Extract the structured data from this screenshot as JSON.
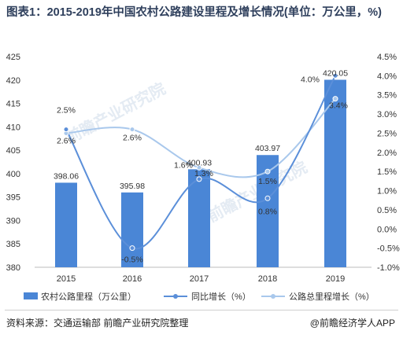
{
  "title": "图表1：2015-2019年中国农村公路建设里程及增长情况(单位：万公里，%)",
  "source": "资料来源：交通运输部 前瞻产业研究院整理",
  "credit": "@前瞻经济学人APP",
  "watermark": "前瞻产业研究院",
  "colors": {
    "bar": "#4a86d6",
    "yoy": "#5b8fd9",
    "total": "#a9c8ec"
  },
  "chart_data": {
    "type": "bar",
    "categories": [
      "2015",
      "2016",
      "2017",
      "2018",
      "2019"
    ],
    "series": [
      {
        "name": "农村公路里程（万公里）",
        "type": "bar",
        "axis": "left",
        "values": [
          398.06,
          395.98,
          400.93,
          403.97,
          420.05
        ],
        "labels": [
          "398.06",
          "395.98",
          "400.93",
          "403.97",
          "420.05"
        ]
      },
      {
        "name": "同比增长（%）",
        "type": "line",
        "axis": "right",
        "values": [
          2.6,
          -0.5,
          1.3,
          0.8,
          4.0
        ],
        "labels": [
          "2.6%",
          "-0.5%",
          "1.3%",
          "0.8%",
          "4.0%"
        ]
      },
      {
        "name": "公路总里程增长（%）",
        "type": "line",
        "axis": "right",
        "values": [
          2.5,
          2.6,
          1.6,
          1.5,
          3.4
        ],
        "labels": [
          "2.5%",
          "2.6%",
          "1.6%",
          "1.5%",
          "3.4%"
        ]
      }
    ],
    "y_left": {
      "ylim": [
        380,
        425
      ],
      "ticks": [
        "380",
        "385",
        "390",
        "395",
        "400",
        "405",
        "410",
        "415",
        "420",
        "425"
      ]
    },
    "y_right": {
      "ylim": [
        -1.0,
        4.5
      ],
      "ticks": [
        "-1.0%",
        "-0.5%",
        "0.0%",
        "0.5%",
        "1.0%",
        "1.5%",
        "2.0%",
        "2.5%",
        "3.0%",
        "3.5%",
        "4.0%",
        "4.5%"
      ]
    },
    "legend_position": "bottom",
    "grid": false
  }
}
